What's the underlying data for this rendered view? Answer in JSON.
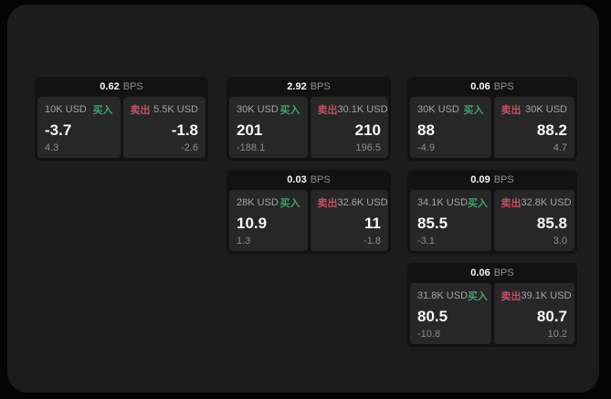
{
  "labels": {
    "bps_unit": "BPS",
    "buy": "买入",
    "sell": "卖出"
  },
  "colors": {
    "buy_accent": "#3da46c",
    "sell_accent": "#c44f62",
    "window_bg": "#1c1c1c",
    "card_bg": "#121212",
    "panel_bg": "#272727"
  },
  "cards": [
    {
      "bps": "0.62",
      "buy": {
        "amount": "10K USD",
        "value": "-3.7",
        "sub": "4.3"
      },
      "sell": {
        "amount": "5.5K USD",
        "value": "-1.8",
        "sub": "-2.6"
      }
    },
    {
      "bps": "2.92",
      "buy": {
        "amount": "30K USD",
        "value": "201",
        "sub": "-188.1"
      },
      "sell": {
        "amount": "30.1K USD",
        "value": "210",
        "sub": "196.5"
      }
    },
    {
      "bps": "0.06",
      "buy": {
        "amount": "30K USD",
        "value": "88",
        "sub": "-4.9"
      },
      "sell": {
        "amount": "30K USD",
        "value": "88.2",
        "sub": "4.7"
      }
    },
    {
      "bps": "0.03",
      "buy": {
        "amount": "28K USD",
        "value": "10.9",
        "sub": "1.3"
      },
      "sell": {
        "amount": "32.6K USD",
        "value": "11",
        "sub": "-1.8"
      }
    },
    {
      "bps": "0.09",
      "buy": {
        "amount": "34.1K USD",
        "value": "85.5",
        "sub": "-3.1"
      },
      "sell": {
        "amount": "32.8K USD",
        "value": "85.8",
        "sub": "3.0"
      }
    },
    {
      "bps": "0.06",
      "buy": {
        "amount": "31.8K USD",
        "value": "80.5",
        "sub": "-10.8"
      },
      "sell": {
        "amount": "39.1K USD",
        "value": "80.7",
        "sub": "10.2"
      }
    }
  ]
}
